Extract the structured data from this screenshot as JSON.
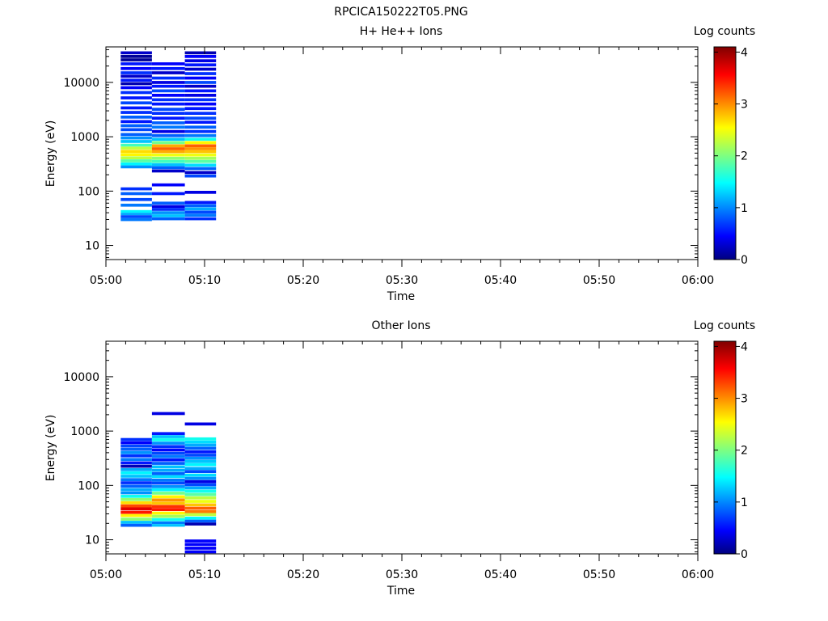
{
  "figure_title": "RPCICA150222T05.PNG",
  "chart_data": [
    {
      "type": "heatmap",
      "title": "H+ He++ Ions",
      "xlabel": "Time",
      "ylabel": "Energy (eV)",
      "x_ticks": [
        "05:00",
        "05:10",
        "05:20",
        "05:30",
        "05:40",
        "05:50",
        "06:00"
      ],
      "y_ticks": [
        "10",
        "100",
        "1000",
        "10000"
      ],
      "y_scale": "log",
      "ylim": [
        5.5,
        45000
      ],
      "colorbar": {
        "label": "Log counts",
        "ticks": [
          "0",
          "1",
          "2",
          "3",
          "4"
        ],
        "range": [
          0,
          4.1
        ],
        "colormap": "jet"
      },
      "columns": [
        {
          "t_start": "05:01:30",
          "t_end": "05:04:40",
          "bins": [
            [
              35000,
              0.3
            ],
            [
              30000,
              0.1
            ],
            [
              26000,
              0.1
            ],
            [
              22000,
              0.6
            ],
            [
              18000,
              0.5
            ],
            [
              15000,
              0.7
            ],
            [
              13000,
              0.3
            ],
            [
              11000,
              0.6
            ],
            [
              9500,
              0.2
            ],
            [
              8000,
              0.5
            ],
            [
              6500,
              0.7
            ],
            [
              5200,
              0.6
            ],
            [
              4200,
              0.8
            ],
            [
              3400,
              0.6
            ],
            [
              2800,
              0.7
            ],
            [
              2300,
              0.9
            ],
            [
              1900,
              0.6
            ],
            [
              1600,
              0.9
            ],
            [
              1350,
              0.8
            ],
            [
              1100,
              0.9
            ],
            [
              950,
              1.1
            ],
            [
              820,
              1.3
            ],
            [
              700,
              1.8
            ],
            [
              620,
              2.3
            ],
            [
              540,
              2.7
            ],
            [
              470,
              2.6
            ],
            [
              410,
              2.3
            ],
            [
              360,
              1.9
            ],
            [
              315,
              1.5
            ],
            [
              280,
              1.1
            ],
            [
              110,
              0.7
            ],
            [
              90,
              0.9
            ],
            [
              70,
              0.8
            ],
            [
              55,
              1.0
            ],
            [
              42,
              1.5
            ],
            [
              38,
              1.2
            ],
            [
              34,
              0.8
            ],
            [
              30,
              1.0
            ]
          ]
        },
        {
          "t_start": "05:04:40",
          "t_end": "05:08:00",
          "bins": [
            [
              22000,
              0.5
            ],
            [
              18000,
              0.6
            ],
            [
              15000,
              0.3
            ],
            [
              12000,
              0.7
            ],
            [
              10000,
              0.4
            ],
            [
              8500,
              0.6
            ],
            [
              7000,
              0.8
            ],
            [
              5800,
              0.5
            ],
            [
              4800,
              0.7
            ],
            [
              4000,
              0.6
            ],
            [
              3200,
              0.8
            ],
            [
              2700,
              0.7
            ],
            [
              2200,
              0.6
            ],
            [
              1800,
              0.9
            ],
            [
              1500,
              1.0
            ],
            [
              1250,
              0.4
            ],
            [
              1050,
              0.9
            ],
            [
              900,
              1.3
            ],
            [
              780,
              2.0
            ],
            [
              680,
              2.9
            ],
            [
              600,
              3.2
            ],
            [
              530,
              2.9
            ],
            [
              460,
              2.5
            ],
            [
              400,
              2.1
            ],
            [
              350,
              1.8
            ],
            [
              305,
              1.3
            ],
            [
              270,
              0.9
            ],
            [
              235,
              0.3
            ],
            [
              130,
              0.5
            ],
            [
              90,
              0.6
            ],
            [
              60,
              0.9
            ],
            [
              52,
              0.4
            ],
            [
              46,
              0.7
            ],
            [
              40,
              1.1
            ],
            [
              35,
              1.3
            ],
            [
              31,
              0.9
            ]
          ]
        },
        {
          "t_start": "05:08:00",
          "t_end": "05:11:10",
          "bins": [
            [
              35000,
              0.2
            ],
            [
              30000,
              0.5
            ],
            [
              25000,
              0.4
            ],
            [
              21000,
              0.6
            ],
            [
              17500,
              0.3
            ],
            [
              14500,
              0.7
            ],
            [
              12000,
              0.5
            ],
            [
              10000,
              0.8
            ],
            [
              8500,
              0.3
            ],
            [
              7000,
              0.6
            ],
            [
              5800,
              0.4
            ],
            [
              4800,
              0.7
            ],
            [
              4000,
              0.5
            ],
            [
              3300,
              0.6
            ],
            [
              2700,
              0.7
            ],
            [
              2200,
              0.8
            ],
            [
              1850,
              0.6
            ],
            [
              1500,
              0.9
            ],
            [
              1250,
              0.7
            ],
            [
              1050,
              1.0
            ],
            [
              900,
              1.6
            ],
            [
              780,
              2.6
            ],
            [
              680,
              3.2
            ],
            [
              600,
              3.0
            ],
            [
              530,
              2.8
            ],
            [
              460,
              2.5
            ],
            [
              400,
              2.2
            ],
            [
              350,
              1.9
            ],
            [
              300,
              1.4
            ],
            [
              260,
              0.9
            ],
            [
              220,
              0.3
            ],
            [
              190,
              0.8
            ],
            [
              95,
              0.4
            ],
            [
              62,
              0.6
            ],
            [
              54,
              0.9
            ],
            [
              47,
              1.2
            ],
            [
              41,
              0.8
            ],
            [
              36,
              1.0
            ],
            [
              31,
              0.7
            ]
          ]
        }
      ]
    },
    {
      "type": "heatmap",
      "title": "Other Ions",
      "xlabel": "Time",
      "ylabel": "Energy (eV)",
      "x_ticks": [
        "05:00",
        "05:10",
        "05:20",
        "05:30",
        "05:40",
        "05:50",
        "06:00"
      ],
      "y_ticks": [
        "10",
        "100",
        "1000",
        "10000"
      ],
      "y_scale": "log",
      "ylim": [
        5.5,
        45000
      ],
      "colorbar": {
        "label": "Log counts",
        "ticks": [
          "0",
          "1",
          "2",
          "3",
          "4"
        ],
        "range": [
          0,
          4.1
        ],
        "colormap": "jet"
      },
      "columns": [
        {
          "t_start": "05:01:30",
          "t_end": "05:04:40",
          "bins": [
            [
              700,
              0.7
            ],
            [
              610,
              0.5
            ],
            [
              530,
              0.8
            ],
            [
              460,
              0.9
            ],
            [
              400,
              1.1
            ],
            [
              350,
              0.7
            ],
            [
              300,
              1.0
            ],
            [
              260,
              0.6
            ],
            [
              225,
              0.2
            ],
            [
              195,
              1.2
            ],
            [
              170,
              1.5
            ],
            [
              148,
              1.3
            ],
            [
              128,
              1.0
            ],
            [
              112,
              0.7
            ],
            [
              97,
              0.9
            ],
            [
              84,
              1.2
            ],
            [
              73,
              1.1
            ],
            [
              63,
              1.6
            ],
            [
              55,
              2.1
            ],
            [
              48,
              2.7
            ],
            [
              42,
              3.3
            ],
            [
              37,
              3.7
            ],
            [
              32,
              3.5
            ],
            [
              28,
              2.6
            ],
            [
              24,
              2.1
            ],
            [
              21,
              1.3
            ],
            [
              18.5,
              0.9
            ]
          ]
        },
        {
          "t_start": "05:04:40",
          "t_end": "05:08:00",
          "bins": [
            [
              2100,
              0.4
            ],
            [
              900,
              0.6
            ],
            [
              790,
              1.3
            ],
            [
              690,
              1.6
            ],
            [
              600,
              1.1
            ],
            [
              520,
              0.7
            ],
            [
              450,
              0.5
            ],
            [
              390,
              0.8
            ],
            [
              340,
              1.0
            ],
            [
              295,
              0.6
            ],
            [
              255,
              0.9
            ],
            [
              220,
              1.3
            ],
            [
              190,
              1.2
            ],
            [
              165,
              0.9
            ],
            [
              145,
              1.4
            ],
            [
              125,
              1.0
            ],
            [
              110,
              0.8
            ],
            [
              95,
              1.1
            ],
            [
              83,
              1.5
            ],
            [
              72,
              2.0
            ],
            [
              62,
              2.6
            ],
            [
              54,
              3.0
            ],
            [
              47,
              2.8
            ],
            [
              41,
              3.4
            ],
            [
              36,
              3.5
            ],
            [
              31,
              2.6
            ],
            [
              27,
              2.2
            ],
            [
              23.5,
              1.6
            ],
            [
              20.5,
              1.0
            ],
            [
              18.5,
              1.3
            ]
          ]
        },
        {
          "t_start": "05:08:00",
          "t_end": "05:11:10",
          "bins": [
            [
              1350,
              0.4
            ],
            [
              720,
              1.6
            ],
            [
              630,
              1.4
            ],
            [
              550,
              1.2
            ],
            [
              480,
              0.9
            ],
            [
              415,
              0.6
            ],
            [
              360,
              0.8
            ],
            [
              315,
              1.1
            ],
            [
              275,
              1.3
            ],
            [
              240,
              1.5
            ],
            [
              205,
              1.2
            ],
            [
              180,
              0.8
            ],
            [
              155,
              1.4
            ],
            [
              135,
              1.1
            ],
            [
              118,
              0.4
            ],
            [
              103,
              0.8
            ],
            [
              90,
              1.2
            ],
            [
              78,
              1.6
            ],
            [
              68,
              1.9
            ],
            [
              59,
              2.3
            ],
            [
              51,
              2.5
            ],
            [
              44,
              2.8
            ],
            [
              38,
              3.2
            ],
            [
              33,
              3.1
            ],
            [
              29,
              2.3
            ],
            [
              25,
              1.5
            ],
            [
              22,
              0.9
            ],
            [
              19.5,
              0.2
            ],
            [
              9.5,
              0.5
            ],
            [
              8.2,
              0.5
            ],
            [
              7,
              0.5
            ],
            [
              6,
              0.5
            ]
          ]
        }
      ]
    }
  ]
}
